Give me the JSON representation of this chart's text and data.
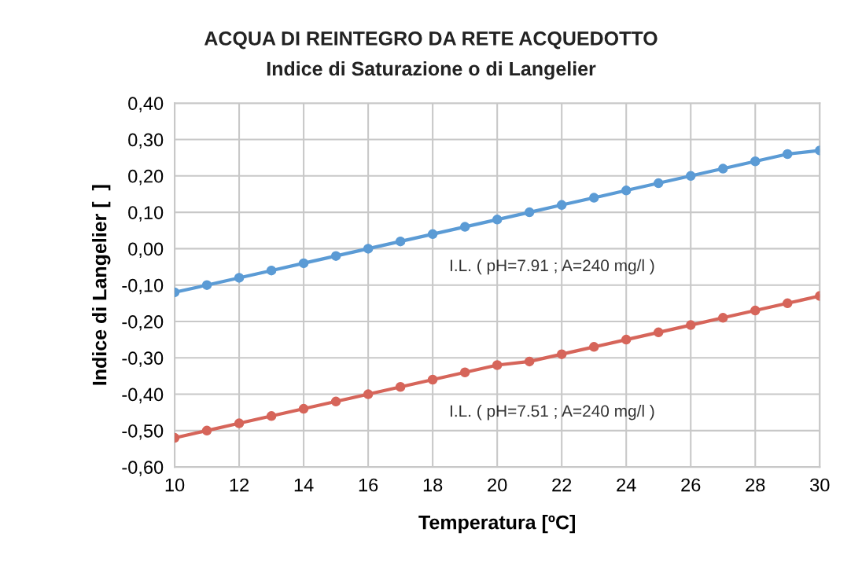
{
  "chart_data": {
    "type": "line",
    "title": "ACQUA DI REINTEGRO DA RETE ACQUEDOTTO",
    "subtitle": "Indice di Saturazione o di Langelier",
    "xlabel": "Temperatura [ºC]",
    "ylabel": "Indice di Langelier [  ]",
    "x": [
      10,
      11,
      12,
      13,
      14,
      15,
      16,
      17,
      18,
      19,
      20,
      21,
      22,
      23,
      24,
      25,
      26,
      27,
      28,
      29,
      30
    ],
    "series": [
      {
        "color": "#5b9bd5",
        "values": [
          -0.12,
          -0.1,
          -0.08,
          -0.06,
          -0.04,
          -0.02,
          0.0,
          0.02,
          0.04,
          0.06,
          0.08,
          0.1,
          0.12,
          0.14,
          0.16,
          0.18,
          0.2,
          0.22,
          0.24,
          0.26,
          0.27
        ]
      },
      {
        "color": "#d6655a",
        "values": [
          -0.52,
          -0.5,
          -0.48,
          -0.46,
          -0.44,
          -0.42,
          -0.4,
          -0.38,
          -0.36,
          -0.34,
          -0.32,
          -0.31,
          -0.29,
          -0.27,
          -0.25,
          -0.23,
          -0.21,
          -0.19,
          -0.17,
          -0.15,
          -0.13
        ]
      }
    ],
    "annotations": [
      "I.L. ( pH=7.91 ; A=240 mg/l )",
      "I.L. ( pH=7.51 ; A=240 mg/l )"
    ],
    "xlim": [
      10,
      30
    ],
    "xticks": [
      10,
      12,
      14,
      16,
      18,
      20,
      22,
      24,
      26,
      28,
      30
    ],
    "ylim": [
      -0.6,
      0.4
    ],
    "yticks": [
      {
        "value": -0.6,
        "label": "-0,60"
      },
      {
        "value": -0.5,
        "label": "-0,50"
      },
      {
        "value": -0.4,
        "label": "-0,40"
      },
      {
        "value": -0.3,
        "label": "-0,30"
      },
      {
        "value": -0.2,
        "label": "-0,20"
      },
      {
        "value": -0.1,
        "label": "-0,10"
      },
      {
        "value": 0.0,
        "label": "0,00"
      },
      {
        "value": 0.1,
        "label": "0,10"
      },
      {
        "value": 0.2,
        "label": "0,20"
      },
      {
        "value": 0.3,
        "label": "0,30"
      },
      {
        "value": 0.4,
        "label": "0,40"
      }
    ],
    "grid": true,
    "marker": "circle",
    "line_style": "solid"
  }
}
